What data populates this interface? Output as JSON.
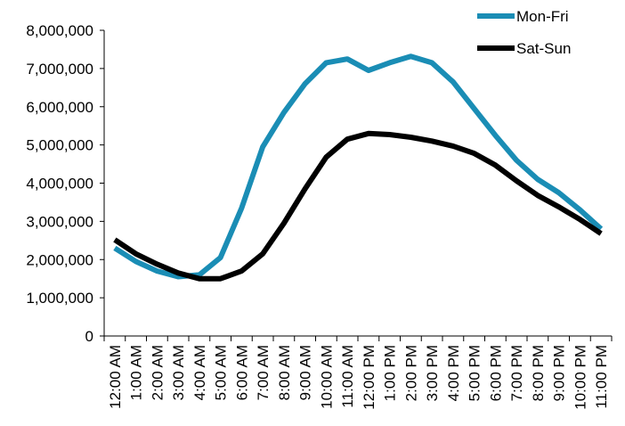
{
  "chart_data": {
    "type": "line",
    "title": "",
    "xlabel": "",
    "ylabel": "",
    "ylim": [
      0,
      8000000
    ],
    "yticks": [
      0,
      1000000,
      2000000,
      3000000,
      4000000,
      5000000,
      6000000,
      7000000,
      8000000
    ],
    "ytick_labels": [
      "0",
      "1,000,000",
      "2,000,000",
      "3,000,000",
      "4,000,000",
      "5,000,000",
      "6,000,000",
      "7,000,000",
      "8,000,000"
    ],
    "categories": [
      "12:00 AM",
      "1:00 AM",
      "2:00 AM",
      "3:00 AM",
      "4:00 AM",
      "5:00 AM",
      "6:00 AM",
      "7:00 AM",
      "8:00 AM",
      "9:00 AM",
      "10:00 AM",
      "11:00 AM",
      "12:00 PM",
      "1:00 PM",
      "2:00 PM",
      "3:00 PM",
      "4:00 PM",
      "5:00 PM",
      "6:00 PM",
      "7:00 PM",
      "8:00 PM",
      "9:00 PM",
      "10:00 PM",
      "11:00 PM"
    ],
    "grid": false,
    "legend_position": "top-right",
    "series": [
      {
        "name": "Mon-Fri",
        "color": "#1a8db5",
        "values": [
          2300000,
          1950000,
          1700000,
          1550000,
          1600000,
          2050000,
          3350000,
          4950000,
          5850000,
          6600000,
          7150000,
          7250000,
          6950000,
          7150000,
          7320000,
          7150000,
          6650000,
          5950000,
          5250000,
          4600000,
          4100000,
          3750000,
          3300000,
          2800000
        ]
      },
      {
        "name": "Sat-Sun",
        "color": "#000000",
        "values": [
          2520000,
          2150000,
          1880000,
          1650000,
          1500000,
          1500000,
          1700000,
          2150000,
          2950000,
          3850000,
          4680000,
          5150000,
          5300000,
          5270000,
          5200000,
          5100000,
          4970000,
          4780000,
          4470000,
          4060000,
          3680000,
          3380000,
          3050000,
          2680000
        ]
      }
    ]
  }
}
